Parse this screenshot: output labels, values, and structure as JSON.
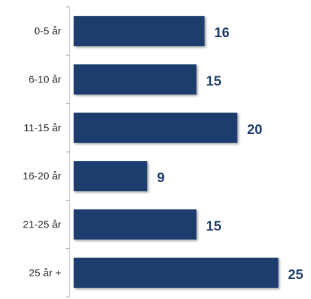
{
  "chart_data": {
    "type": "bar",
    "orientation": "horizontal",
    "categories": [
      "0-5 år",
      "6-10 år",
      "11-15 år",
      "16-20 år",
      "21-25 år",
      "25 år +"
    ],
    "values": [
      16,
      15,
      20,
      9,
      15,
      25
    ],
    "xlim": [
      0,
      25
    ],
    "grid": false,
    "legend": "none",
    "bar_color": "#1f3e6e",
    "value_color": "#1f3e6e"
  }
}
